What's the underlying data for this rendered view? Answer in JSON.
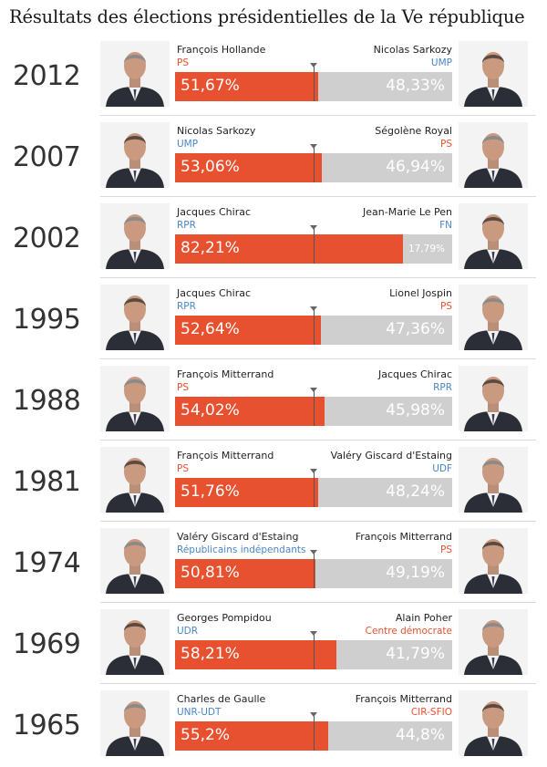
{
  "title": "Résultats des élections présidentielles de la Ve république",
  "colors": {
    "left_bar": "#e8512f",
    "right_bar": "#cfcfcf",
    "party_PS": "#e8512f",
    "party_right": "#4a86c5"
  },
  "chart_data": {
    "type": "bar",
    "orientation": "horizontal-stacked",
    "categories": [
      "2012",
      "2007",
      "2002",
      "1995",
      "1988",
      "1981",
      "1974",
      "1969",
      "1965"
    ],
    "series": [
      {
        "values": [
          51.67,
          53.06,
          82.21,
          52.64,
          54.02,
          51.76,
          50.81,
          58.21,
          55.2
        ]
      },
      {
        "values": [
          48.33,
          46.94,
          17.79,
          47.36,
          45.98,
          48.24,
          49.19,
          41.79,
          44.8
        ]
      }
    ],
    "xlim": [
      0,
      100
    ],
    "reference_line": 50
  },
  "elections": [
    {
      "year": "2012",
      "left": {
        "name": "François Hollande",
        "party": "PS",
        "party_color": "#e8512f",
        "pct": "51,67%"
      },
      "right": {
        "name": "Nicolas Sarkozy",
        "party": "UMP",
        "party_color": "#4a86c5",
        "pct": "48,33%"
      }
    },
    {
      "year": "2007",
      "left": {
        "name": "Nicolas Sarkozy",
        "party": "UMP",
        "party_color": "#4a86c5",
        "pct": "53,06%"
      },
      "right": {
        "name": "Ségolène Royal",
        "party": "PS",
        "party_color": "#e8512f",
        "pct": "46,94%"
      }
    },
    {
      "year": "2002",
      "left": {
        "name": "Jacques Chirac",
        "party": "RPR",
        "party_color": "#4a86c5",
        "pct": "82,21%"
      },
      "right": {
        "name": "Jean-Marie Le Pen",
        "party": "FN",
        "party_color": "#4a86c5",
        "pct": "17,79%"
      }
    },
    {
      "year": "1995",
      "left": {
        "name": "Jacques Chirac",
        "party": "RPR",
        "party_color": "#4a86c5",
        "pct": "52,64%"
      },
      "right": {
        "name": "Lionel Jospin",
        "party": "PS",
        "party_color": "#e8512f",
        "pct": "47,36%"
      }
    },
    {
      "year": "1988",
      "left": {
        "name": "François Mitterrand",
        "party": "PS",
        "party_color": "#e8512f",
        "pct": "54,02%"
      },
      "right": {
        "name": "Jacques Chirac",
        "party": "RPR",
        "party_color": "#4a86c5",
        "pct": "45,98%"
      }
    },
    {
      "year": "1981",
      "left": {
        "name": "François Mitterrand",
        "party": "PS",
        "party_color": "#e8512f",
        "pct": "51,76%"
      },
      "right": {
        "name": "Valéry Giscard d'Estaing",
        "party": "UDF",
        "party_color": "#4a86c5",
        "pct": "48,24%"
      }
    },
    {
      "year": "1974",
      "left": {
        "name": "Valéry Giscard d'Estaing",
        "party": "Républicains indépendants",
        "party_color": "#4a86c5",
        "pct": "50,81%"
      },
      "right": {
        "name": "François Mitterrand",
        "party": "PS",
        "party_color": "#e8512f",
        "pct": "49,19%"
      }
    },
    {
      "year": "1969",
      "left": {
        "name": "Georges Pompidou",
        "party": "UDR",
        "party_color": "#4a86c5",
        "pct": "58,21%"
      },
      "right": {
        "name": "Alain Poher",
        "party": "Centre démocrate",
        "party_color": "#e8512f",
        "pct": "41,79%"
      }
    },
    {
      "year": "1965",
      "left": {
        "name": "Charles de Gaulle",
        "party": "UNR-UDT",
        "party_color": "#4a86c5",
        "pct": "55,2%"
      },
      "right": {
        "name": "François Mitterrand",
        "party": "CIR-SFIO",
        "party_color": "#e8512f",
        "pct": "44,8%"
      }
    }
  ]
}
